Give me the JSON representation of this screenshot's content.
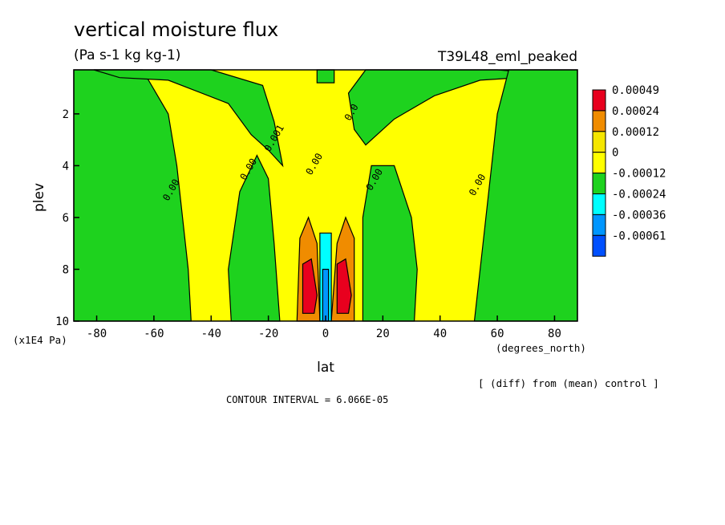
{
  "chart_data": {
    "type": "heatmap",
    "title": "vertical moisture flux",
    "units": "(Pa s-1 kg kg-1)",
    "experiment": "T39L48_eml_peaked",
    "xlabel": "lat",
    "xlabel_units": "(degrees_north)",
    "ylabel": "plev",
    "ylabel_units": "(x1E4 Pa)",
    "xlim": [
      -88,
      88
    ],
    "ylim": [
      0.3,
      10
    ],
    "y_inverted": true,
    "x_ticks": [
      -80,
      -60,
      -40,
      -20,
      0,
      20,
      40,
      60,
      80
    ],
    "x_tick_labels": [
      "-80",
      "-60",
      "-40",
      "-20",
      "0",
      "20",
      "40",
      "60",
      "80"
    ],
    "y_ticks": [
      2,
      4,
      6,
      8,
      10
    ],
    "y_tick_labels": [
      "2",
      "4",
      "6",
      "8",
      "10"
    ],
    "legend": {
      "placement": "right",
      "levels": [
        "0.00049",
        "0.00024",
        "0.00012",
        "0",
        "-0.00012",
        "-0.00024",
        "-0.00036",
        "-0.00061"
      ],
      "colors": [
        "#e8001e",
        "#f08c00",
        "#f5e600",
        "#ffff00",
        "#1ed21e",
        "#00ffff",
        "#0096ff",
        "#0050ff"
      ]
    },
    "contour_labels": [
      {
        "text": "0.00",
        "x": -53,
        "y": 5
      },
      {
        "text": "0.001",
        "x": -17,
        "y": 3
      },
      {
        "text": "0.00",
        "x": -26,
        "y": 4.2
      },
      {
        "text": "0.00",
        "x": -3,
        "y": 4
      },
      {
        "text": "0.0",
        "x": 10,
        "y": 2
      },
      {
        "text": "0.00",
        "x": 18,
        "y": 4.6
      },
      {
        "text": "0.00",
        "x": 54,
        "y": 4.8
      }
    ],
    "fill_colors": {
      "background": "#ffff00",
      "negative": "#1ed21e",
      "strong_positive": "#f08c00",
      "max_positive": "#e8001e",
      "neg_cyan": "#00ffff",
      "neg_blue": "#0096ff"
    },
    "annotations": {
      "contour_interval": "CONTOUR INTERVAL = 6.066E-05",
      "comparison": "[ (diff) from (mean) control ]"
    }
  }
}
